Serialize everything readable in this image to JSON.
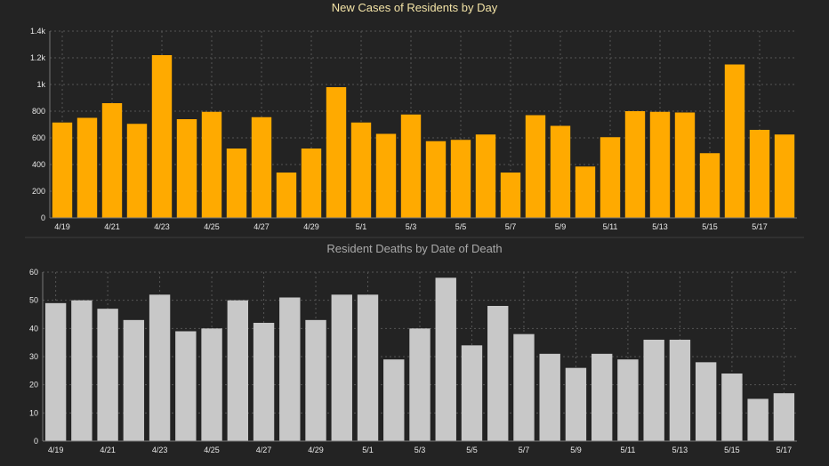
{
  "colors": {
    "background": "#232323",
    "cases_bar": "#ffaa00",
    "deaths_bar": "#c8c8c8"
  },
  "chart_data": [
    {
      "type": "bar",
      "title": "New Cases of Residents by Day",
      "xlabel": "",
      "ylabel": "",
      "ylim": [
        0,
        1400
      ],
      "yticks": [
        0,
        200,
        400,
        600,
        800,
        1000,
        1200,
        1400
      ],
      "ytick_labels": [
        "0",
        "200",
        "400",
        "600",
        "800",
        "1k",
        "1.2k",
        "1.4k"
      ],
      "grid": true,
      "legend": "none",
      "categories": [
        "4/19",
        "4/20",
        "4/21",
        "4/22",
        "4/23",
        "4/24",
        "4/25",
        "4/26",
        "4/27",
        "4/28",
        "4/29",
        "4/30",
        "5/1",
        "5/2",
        "5/3",
        "5/4",
        "5/5",
        "5/6",
        "5/7",
        "5/8",
        "5/9",
        "5/10",
        "5/11",
        "5/12",
        "5/13",
        "5/14",
        "5/15",
        "5/16",
        "5/17",
        "5/18"
      ],
      "xtick_labels": [
        "4/19",
        "",
        "4/21",
        "",
        "4/23",
        "",
        "4/25",
        "",
        "4/27",
        "",
        "4/29",
        "",
        "5/1",
        "",
        "5/3",
        "",
        "5/5",
        "",
        "5/7",
        "",
        "5/9",
        "",
        "5/11",
        "",
        "5/13",
        "",
        "5/15",
        "",
        "5/17",
        ""
      ],
      "values": [
        715,
        750,
        860,
        705,
        1220,
        740,
        795,
        520,
        755,
        340,
        520,
        980,
        715,
        630,
        775,
        575,
        585,
        625,
        340,
        770,
        690,
        385,
        605,
        800,
        795,
        790,
        485,
        1150,
        660,
        625
      ]
    },
    {
      "type": "bar",
      "title": "Resident Deaths by Date of Death",
      "xlabel": "",
      "ylabel": "",
      "ylim": [
        0,
        60
      ],
      "yticks": [
        0,
        10,
        20,
        30,
        40,
        50,
        60
      ],
      "ytick_labels": [
        "0",
        "10",
        "20",
        "30",
        "40",
        "50",
        "60"
      ],
      "grid": true,
      "legend": "none",
      "categories": [
        "4/19",
        "4/20",
        "4/21",
        "4/22",
        "4/23",
        "4/24",
        "4/25",
        "4/26",
        "4/27",
        "4/28",
        "4/29",
        "4/30",
        "5/1",
        "5/2",
        "5/3",
        "5/4",
        "5/5",
        "5/6",
        "5/7",
        "5/8",
        "5/9",
        "5/10",
        "5/11",
        "5/12",
        "5/13",
        "5/14",
        "5/15",
        "5/16",
        "5/17"
      ],
      "xtick_labels": [
        "4/19",
        "",
        "4/21",
        "",
        "4/23",
        "",
        "4/25",
        "",
        "4/27",
        "",
        "4/29",
        "",
        "5/1",
        "",
        "5/3",
        "",
        "5/5",
        "",
        "5/7",
        "",
        "5/9",
        "",
        "5/11",
        "",
        "5/13",
        "",
        "5/15",
        "",
        "5/17"
      ],
      "values": [
        49,
        50,
        47,
        43,
        52,
        39,
        40,
        50,
        42,
        51,
        43,
        52,
        52,
        29,
        40,
        58,
        34,
        48,
        38,
        31,
        26,
        31,
        29,
        36,
        36,
        28,
        24,
        15,
        17
      ]
    }
  ]
}
